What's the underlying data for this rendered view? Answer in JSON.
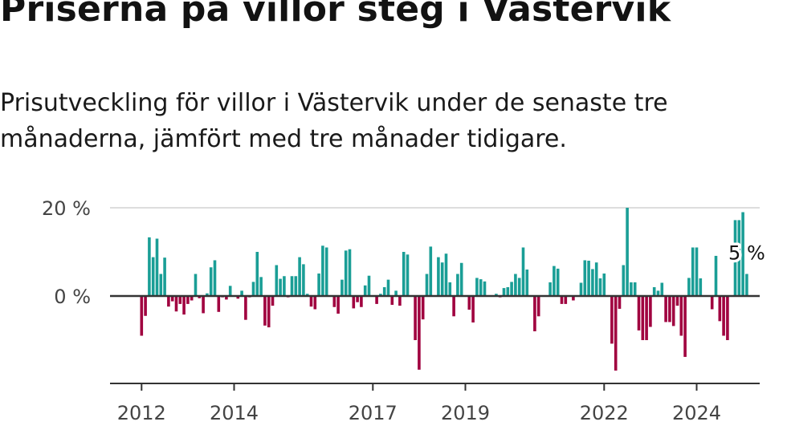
{
  "title": "Priserna på villor steg i Västervik",
  "subtitle": "Prisutveckling för villor i Västervik under de senaste tre månaderna, jämfört med tre månader tidigare.",
  "chart_data": {
    "type": "bar",
    "title": "Priserna på villor steg i Västervik",
    "subtitle": "Prisutveckling för villor i Västervik under de senaste tre månaderna, jämfört med tre månader tidigare.",
    "unit": "%",
    "x_start": "2012-01",
    "x_tick_labels": [
      "2012",
      "2014",
      "2017",
      "2019",
      "2022",
      "2024"
    ],
    "y_tick_labels": [
      "20 %",
      "0 %"
    ],
    "y_ticks": [
      20,
      0
    ],
    "ylim": [
      -17,
      20
    ],
    "grid": true,
    "legend": "none",
    "colors": {
      "positive": "#1a9e96",
      "negative": "#a0003f",
      "axis": "#333333",
      "grid": "#dddddd"
    },
    "last_value_label": "5 %",
    "values": [
      -9,
      -4.5,
      13.3,
      8.8,
      13,
      5,
      8.7,
      -2.4,
      -1.2,
      -3.5,
      -1.8,
      -4.2,
      -1.8,
      -1,
      5,
      -0.5,
      -3.9,
      0.6,
      6.5,
      8.1,
      -3.6,
      -0.3,
      -0.8,
      2.3,
      0,
      -0.6,
      1.2,
      -5.4,
      -0.3,
      3.2,
      10,
      4.3,
      -6.7,
      -7.1,
      -2.2,
      7,
      3.9,
      4.5,
      -0.3,
      4.5,
      4.5,
      8.8,
      7.2,
      0.5,
      -2.4,
      -3,
      5.1,
      11.4,
      11,
      0,
      -2.5,
      -4,
      3.7,
      10.3,
      10.6,
      -2.8,
      -1.4,
      -2.5,
      2.4,
      4.6,
      0,
      -1.8,
      0.5,
      2,
      3.7,
      -2,
      1.2,
      -2.2,
      10,
      9.4,
      0,
      -10,
      -16.7,
      -5.3,
      5,
      11.2,
      0,
      8.8,
      7.6,
      9.6,
      3.1,
      -4.6,
      5,
      7.5,
      0,
      -3.1,
      -6,
      4.1,
      3.8,
      3.3,
      0,
      0,
      0.5,
      -0.3,
      1.8,
      2,
      3.2,
      5,
      4.1,
      11,
      6,
      0,
      -8,
      -4.6,
      0,
      0,
      3.1,
      6.8,
      6.2,
      -1.8,
      -1.8,
      0,
      -1,
      0,
      3,
      8.1,
      8,
      6.1,
      7.6,
      4,
      5.1,
      0,
      -10.8,
      -16.9,
      -2.9,
      7,
      20,
      3.1,
      3.1,
      -7.8,
      -10,
      -10,
      -7,
      2,
      1.2,
      3,
      -5.9,
      -5.9,
      -6.8,
      -2.2,
      -9,
      -13.8,
      4.1,
      11,
      11,
      4,
      0,
      0,
      -3,
      9.1,
      -5.7,
      -9,
      -10,
      0,
      17.2,
      17.2,
      19,
      5
    ]
  }
}
